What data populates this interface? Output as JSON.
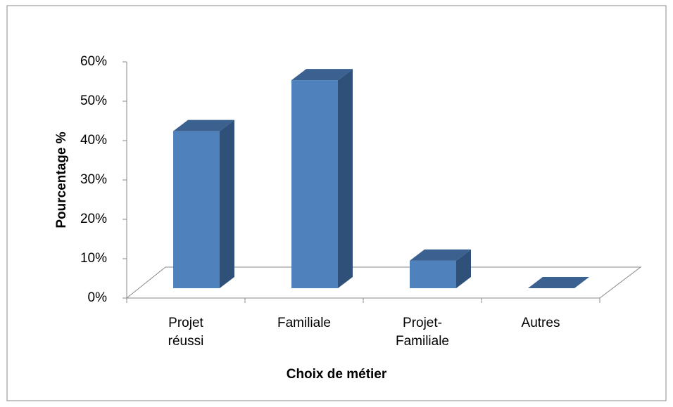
{
  "chart_data": {
    "type": "bar3d",
    "categories": [
      "Projet réussi",
      "Familiale",
      "Projet-Familiale",
      "Autres"
    ],
    "values": [
      40,
      53,
      7,
      0
    ],
    "color": "#4f81bd",
    "ylabel": "Pourcentage %",
    "xlabel": "Choix de métier",
    "ylim": [
      0,
      60
    ],
    "yticks": [
      {
        "value": 0,
        "label": "0%"
      },
      {
        "value": 10,
        "label": "10%"
      },
      {
        "value": 20,
        "label": "20%"
      },
      {
        "value": 30,
        "label": "30%"
      },
      {
        "value": 40,
        "label": "40%"
      },
      {
        "value": 50,
        "label": "50%"
      },
      {
        "value": 60,
        "label": "60%"
      }
    ],
    "grid": false
  }
}
